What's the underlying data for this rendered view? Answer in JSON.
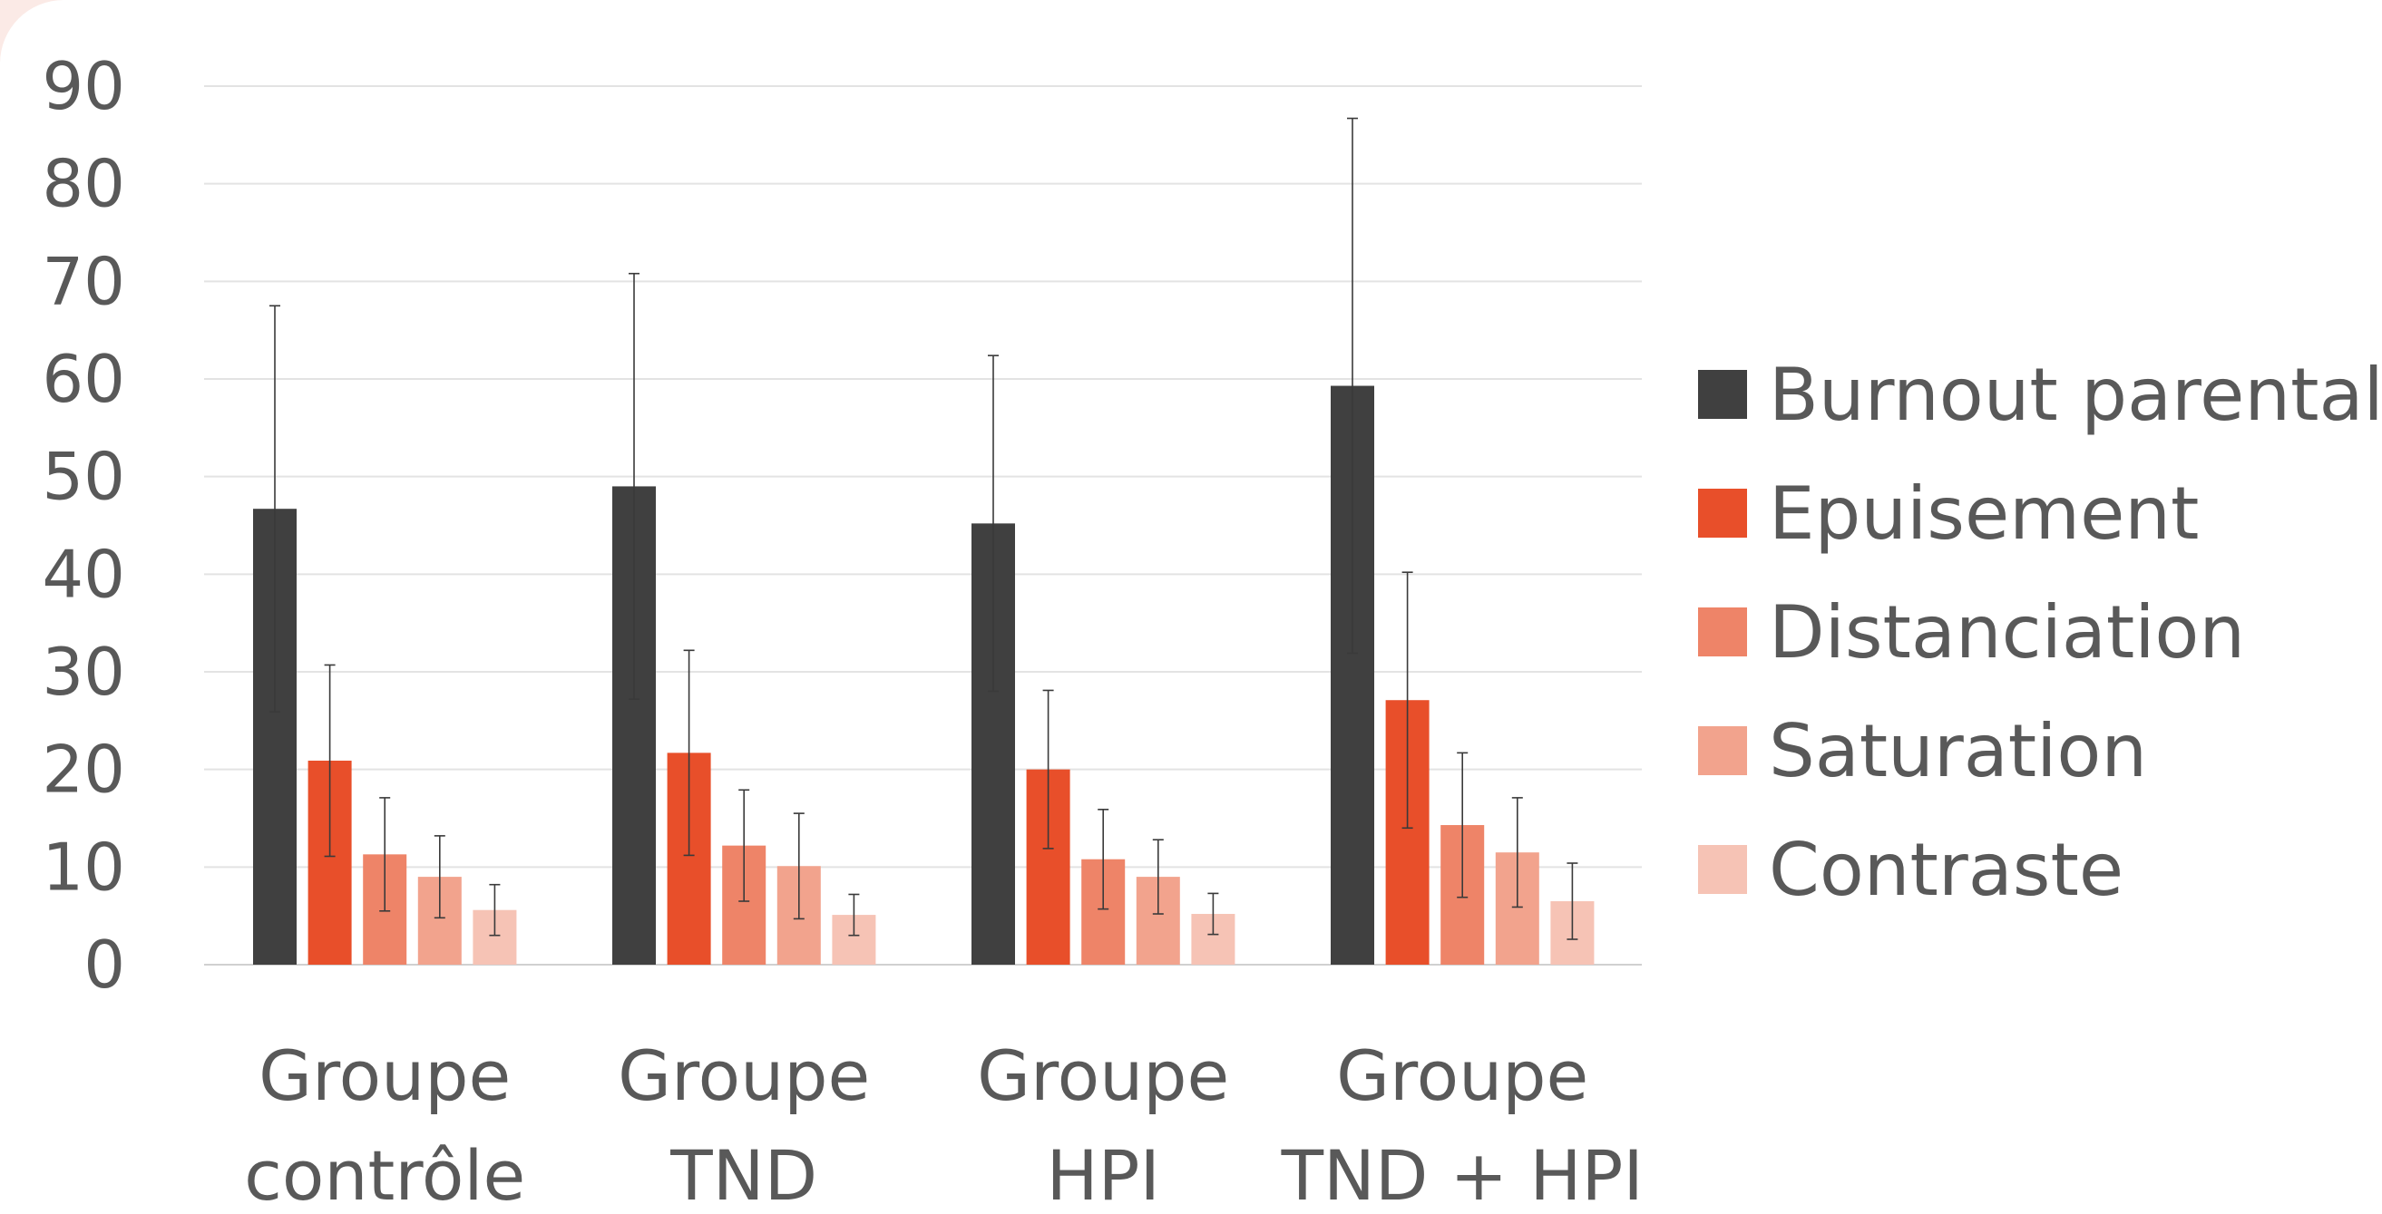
{
  "chart_data": {
    "type": "bar",
    "title": "",
    "xlabel": "",
    "ylabel": "",
    "ylim": [
      0,
      90
    ],
    "ytick_step": 10,
    "yticks": [
      "0",
      "10",
      "20",
      "30",
      "40",
      "50",
      "60",
      "70",
      "80",
      "90"
    ],
    "grid": true,
    "legend_position": "right",
    "error_bars": true,
    "categories": [
      [
        "Groupe",
        "contrôle"
      ],
      [
        "Groupe",
        "TND"
      ],
      [
        "Groupe",
        "HPI"
      ],
      [
        "Groupe",
        "TND + HPI"
      ]
    ],
    "series": [
      {
        "name": "Burnout parental",
        "color": "#404040",
        "values": [
          46.7,
          49.0,
          45.2,
          59.3
        ],
        "errors": [
          20.8,
          21.8,
          17.2,
          27.4
        ]
      },
      {
        "name": "Epuisement",
        "color": "#e84f2a",
        "values": [
          20.9,
          21.7,
          20.0,
          27.1
        ],
        "errors": [
          9.8,
          10.5,
          8.1,
          13.1
        ]
      },
      {
        "name": "Distanciation",
        "color": "#ee8468",
        "values": [
          11.3,
          12.2,
          10.8,
          14.3
        ],
        "errors": [
          5.8,
          5.7,
          5.1,
          7.4
        ]
      },
      {
        "name": "Saturation",
        "color": "#f2a38d",
        "values": [
          9.0,
          10.1,
          9.0,
          11.5
        ],
        "errors": [
          4.2,
          5.4,
          3.8,
          5.6
        ]
      },
      {
        "name": "Contraste",
        "color": "#f6c3b5",
        "values": [
          5.6,
          5.1,
          5.2,
          6.5
        ],
        "errors": [
          2.6,
          2.1,
          2.1,
          3.9
        ]
      }
    ]
  }
}
